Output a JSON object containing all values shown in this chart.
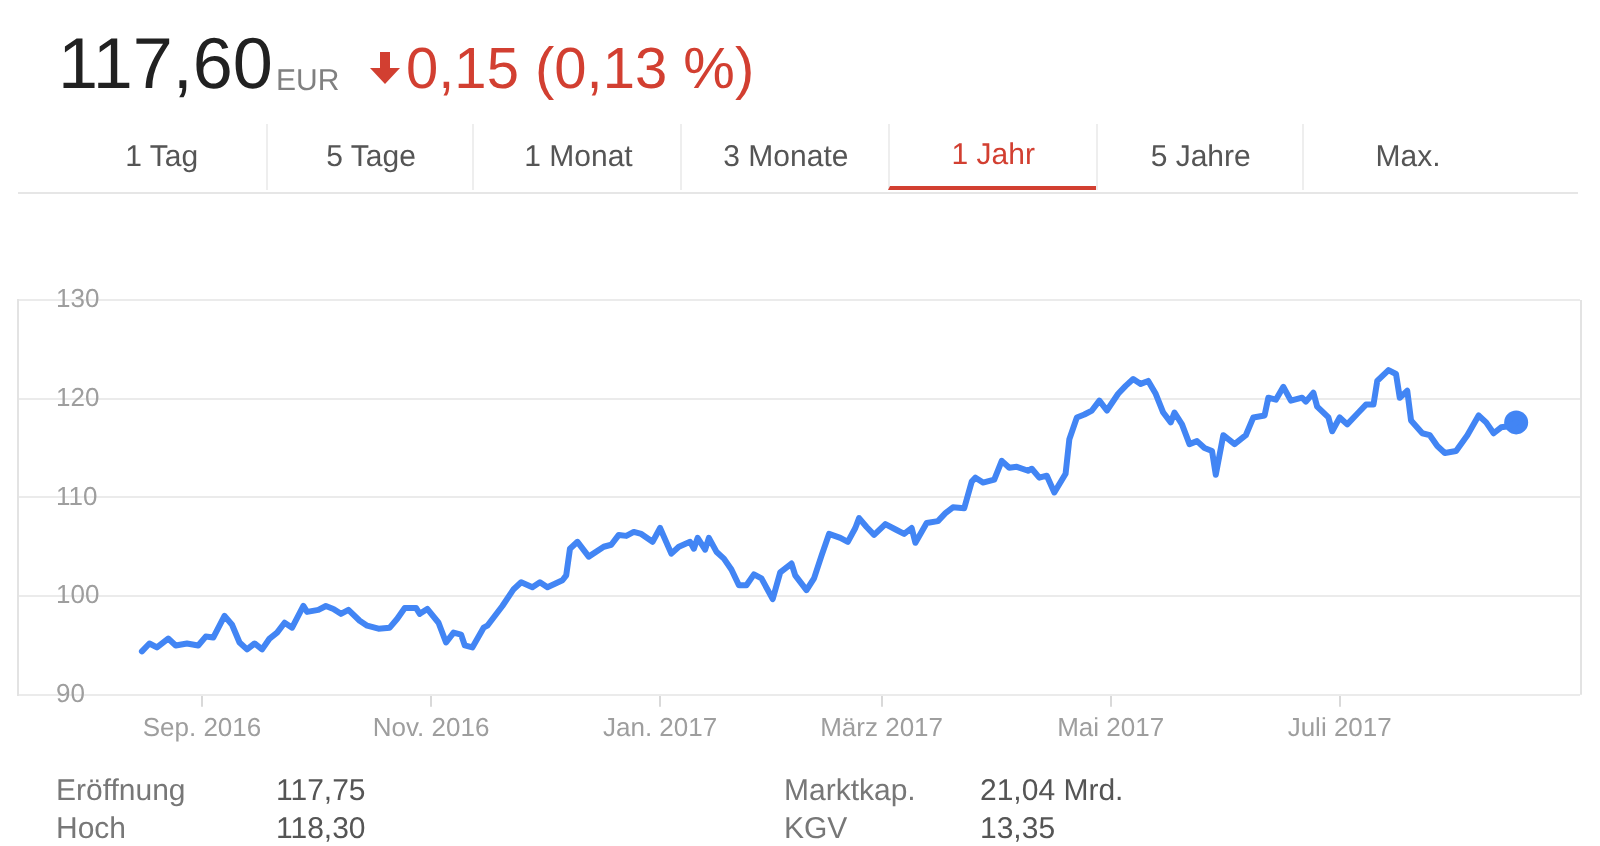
{
  "chart_data": {
    "type": "line",
    "title": "117,60",
    "annotations": [
      "EUR",
      "0,15 (0,13 %)",
      "1 Tag",
      "5 Tage",
      "1 Monat",
      "3 Monate",
      "1 Jahr",
      "5 Jahre",
      "Max.",
      "Eröffnung",
      "117,75",
      "Marktkap.",
      "21,04 Mrd.",
      "Hoch",
      "118,30",
      "KGV",
      "13,35"
    ],
    "xlim": [
      "2016-07-14",
      "2017-09-03"
    ],
    "xticks": [
      {
        "value": "2016-09-01",
        "label": "Sep. 2016"
      },
      {
        "value": "2016-11-01",
        "label": "Nov. 2016"
      },
      {
        "value": "2017-01-01",
        "label": "Jan. 2017"
      },
      {
        "value": "2017-03-01",
        "label": "März 2017"
      },
      {
        "value": "2017-05-01",
        "label": "Mai 2017"
      },
      {
        "value": "2017-07-01",
        "label": "Juli 2017"
      }
    ],
    "ylim": [
      90,
      130
    ],
    "yticks": [
      90,
      100,
      110,
      120,
      130
    ],
    "grid": "y",
    "marker": "none",
    "line_style": "solid",
    "series": [
      {
        "type": "line",
        "color": "#4285f4",
        "x": [
          "2016-08-16",
          "2016-08-18",
          "2016-08-20",
          "2016-08-23",
          "2016-08-25",
          "2016-08-28",
          "2016-08-31",
          "2016-09-02",
          "2016-09-04",
          "2016-09-07",
          "2016-09-09",
          "2016-09-11",
          "2016-09-13",
          "2016-09-15",
          "2016-09-17",
          "2016-09-19",
          "2016-09-21",
          "2016-09-23",
          "2016-09-25",
          "2016-09-28",
          "2016-09-29",
          "2016-10-02",
          "2016-10-04",
          "2016-10-06",
          "2016-10-08",
          "2016-10-10",
          "2016-10-13",
          "2016-10-15",
          "2016-10-18",
          "2016-10-21",
          "2016-10-23",
          "2016-10-25",
          "2016-10-28",
          "2016-10-29",
          "2016-10-31",
          "2016-11-03",
          "2016-11-05",
          "2016-11-07",
          "2016-11-09",
          "2016-11-10",
          "2016-11-12",
          "2016-11-15",
          "2016-11-16",
          "2016-11-20",
          "2016-11-23",
          "2016-11-25",
          "2016-11-28",
          "2016-11-30",
          "2016-12-02",
          "2016-12-06",
          "2016-12-07",
          "2016-12-08",
          "2016-12-10",
          "2016-12-13",
          "2016-12-17",
          "2016-12-19",
          "2016-12-21",
          "2016-12-23",
          "2016-12-25",
          "2016-12-27",
          "2016-12-30",
          "2017-01-01",
          "2017-01-04",
          "2017-01-06",
          "2017-01-09",
          "2017-01-10",
          "2017-01-11",
          "2017-01-13",
          "2017-01-14",
          "2017-01-16",
          "2017-01-18",
          "2017-01-20",
          "2017-01-22",
          "2017-01-24",
          "2017-01-26",
          "2017-01-28",
          "2017-01-31",
          "2017-02-02",
          "2017-02-05",
          "2017-02-06",
          "2017-02-09",
          "2017-02-11",
          "2017-02-13",
          "2017-02-15",
          "2017-02-18",
          "2017-02-20",
          "2017-02-22",
          "2017-02-23",
          "2017-02-25",
          "2017-02-27",
          "2017-03-02",
          "2017-03-05",
          "2017-03-07",
          "2017-03-09",
          "2017-03-10",
          "2017-03-13",
          "2017-03-16",
          "2017-03-18",
          "2017-03-20",
          "2017-03-23",
          "2017-03-25",
          "2017-03-26",
          "2017-03-28",
          "2017-03-31",
          "2017-04-02",
          "2017-04-04",
          "2017-04-06",
          "2017-04-09",
          "2017-04-10",
          "2017-04-12",
          "2017-04-14",
          "2017-04-16",
          "2017-04-19",
          "2017-04-20",
          "2017-04-22",
          "2017-04-24",
          "2017-04-26",
          "2017-04-28",
          "2017-04-30",
          "2017-05-03",
          "2017-05-05",
          "2017-05-07",
          "2017-05-09",
          "2017-05-11",
          "2017-05-13",
          "2017-05-15",
          "2017-05-17",
          "2017-05-18",
          "2017-05-20",
          "2017-05-22",
          "2017-05-24",
          "2017-05-26",
          "2017-05-28",
          "2017-05-29",
          "2017-05-31",
          "2017-06-03",
          "2017-06-06",
          "2017-06-08",
          "2017-06-11",
          "2017-06-12",
          "2017-06-14",
          "2017-06-16",
          "2017-06-18",
          "2017-06-21",
          "2017-06-22",
          "2017-06-24",
          "2017-06-25",
          "2017-06-28",
          "2017-06-29",
          "2017-07-01",
          "2017-07-03",
          "2017-07-06",
          "2017-07-08",
          "2017-07-10",
          "2017-07-11",
          "2017-07-14",
          "2017-07-16",
          "2017-07-17",
          "2017-07-19",
          "2017-07-20",
          "2017-07-23",
          "2017-07-25",
          "2017-07-27",
          "2017-07-29",
          "2017-08-01",
          "2017-08-04",
          "2017-08-07",
          "2017-08-09",
          "2017-08-11",
          "2017-08-13",
          "2017-08-15",
          "2017-08-17"
        ],
        "values": [
          94.4,
          95.2,
          94.8,
          95.7,
          95.0,
          95.2,
          95.0,
          95.9,
          95.8,
          98.0,
          97.1,
          95.3,
          94.6,
          95.2,
          94.6,
          95.7,
          96.3,
          97.3,
          96.8,
          99.0,
          98.4,
          98.6,
          99.0,
          98.7,
          98.2,
          98.6,
          97.5,
          97.0,
          96.7,
          96.8,
          97.7,
          98.8,
          98.8,
          98.2,
          98.7,
          97.3,
          95.3,
          96.3,
          96.1,
          95.0,
          94.8,
          96.8,
          97.0,
          99.0,
          100.7,
          101.4,
          100.9,
          101.4,
          100.9,
          101.6,
          102.1,
          104.8,
          105.5,
          104.0,
          105.0,
          105.2,
          106.2,
          106.1,
          106.5,
          106.3,
          105.5,
          106.9,
          104.3,
          105.0,
          105.5,
          104.8,
          105.9,
          104.7,
          105.9,
          104.5,
          103.8,
          102.7,
          101.1,
          101.1,
          102.2,
          101.8,
          99.7,
          102.4,
          103.3,
          102.1,
          100.6,
          101.8,
          104.1,
          106.3,
          105.9,
          105.5,
          106.9,
          107.9,
          107.0,
          106.2,
          107.3,
          106.7,
          106.3,
          106.9,
          105.4,
          107.4,
          107.6,
          108.4,
          109.0,
          108.9,
          111.6,
          112.0,
          111.5,
          111.8,
          113.7,
          113.0,
          113.1,
          112.7,
          112.9,
          112.0,
          112.2,
          110.5,
          112.4,
          115.9,
          118.1,
          118.4,
          118.8,
          119.8,
          118.8,
          120.5,
          121.3,
          122.0,
          121.5,
          121.8,
          120.5,
          118.6,
          117.6,
          118.6,
          117.4,
          115.4,
          115.7,
          115.0,
          114.7,
          112.3,
          116.3,
          115.4,
          116.3,
          118.1,
          118.3,
          120.1,
          119.9,
          121.2,
          119.8,
          120.1,
          119.7,
          120.6,
          119.2,
          118.1,
          116.7,
          118.1,
          117.4,
          118.6,
          119.4,
          119.4,
          121.8,
          122.9,
          122.5,
          120.1,
          120.8,
          117.8,
          116.5,
          116.3,
          115.2,
          114.5,
          114.7,
          116.3,
          118.3,
          117.6,
          116.5,
          117.1,
          117.2,
          117.6
        ]
      },
      {
        "type": "scatter",
        "color": "#4285f4",
        "marker": "circle",
        "x": [
          "2017-08-17"
        ],
        "values": [
          117.6
        ]
      }
    ]
  }
}
